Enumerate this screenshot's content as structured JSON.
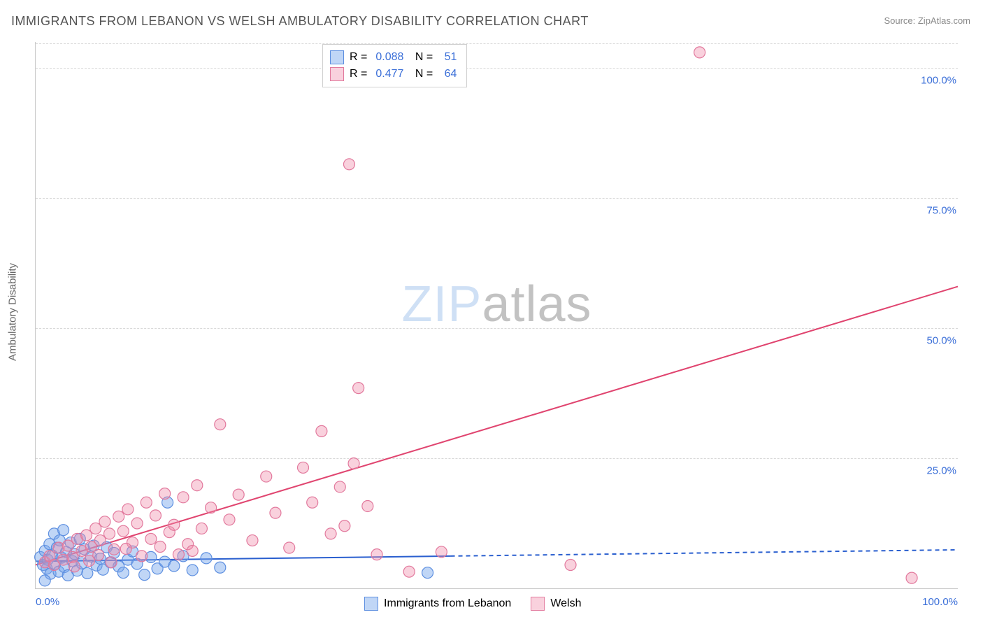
{
  "title": "IMMIGRANTS FROM LEBANON VS WELSH AMBULATORY DISABILITY CORRELATION CHART",
  "source": "Source: ZipAtlas.com",
  "watermark_a": "ZIP",
  "watermark_b": "atlas",
  "y_axis_title": "Ambulatory Disability",
  "chart": {
    "type": "scatter",
    "xlim": [
      0,
      100
    ],
    "ylim": [
      0,
      105
    ],
    "x_ticks": [
      {
        "v": 0,
        "label": "0.0%"
      },
      {
        "v": 100,
        "label": "100.0%"
      }
    ],
    "y_ticks": [
      {
        "v": 25,
        "label": "25.0%"
      },
      {
        "v": 50,
        "label": "50.0%"
      },
      {
        "v": 75,
        "label": "75.0%"
      },
      {
        "v": 100,
        "label": "100.0%"
      }
    ],
    "background_color": "#ffffff",
    "grid_color": "#d8d8d8",
    "axis_color": "#c9c9c9",
    "tick_label_color": "#3b6fd8",
    "text_color": "#666666",
    "marker_radius": 8,
    "marker_stroke_width": 1.2,
    "line_width": 2,
    "font_family": "Arial",
    "title_fontsize": 18,
    "label_fontsize": 15
  },
  "series": [
    {
      "name": "Immigrants from Lebanon",
      "short": "lebanon",
      "fill": "rgba(115,164,234,0.45)",
      "stroke": "#5d8fe0",
      "line_color": "#2a5fcf",
      "R": "0.088",
      "N": "51",
      "reg_line": {
        "x1": 0,
        "y1": 5.2,
        "x2": 45,
        "y2": 6.2,
        "dash_from_x": 45,
        "x3": 100,
        "y3": 7.4
      },
      "points": [
        [
          0.5,
          6
        ],
        [
          0.8,
          4.5
        ],
        [
          1.0,
          7.2
        ],
        [
          1.2,
          3.8
        ],
        [
          1.3,
          5.5
        ],
        [
          1.5,
          8.5
        ],
        [
          1.6,
          2.8
        ],
        [
          1.8,
          6.3
        ],
        [
          2.0,
          10.5
        ],
        [
          2.1,
          4.6
        ],
        [
          2.3,
          7.8
        ],
        [
          2.5,
          3.2
        ],
        [
          2.6,
          9.2
        ],
        [
          2.8,
          5.9
        ],
        [
          3.0,
          11.2
        ],
        [
          3.1,
          4.1
        ],
        [
          3.3,
          7.0
        ],
        [
          3.5,
          2.5
        ],
        [
          3.8,
          8.8
        ],
        [
          4.0,
          5.2
        ],
        [
          4.2,
          6.6
        ],
        [
          4.5,
          3.4
        ],
        [
          4.8,
          9.5
        ],
        [
          5.0,
          4.8
        ],
        [
          5.3,
          7.5
        ],
        [
          5.6,
          2.9
        ],
        [
          6.0,
          6.1
        ],
        [
          6.3,
          8.2
        ],
        [
          6.6,
          4.4
        ],
        [
          7.0,
          5.7
        ],
        [
          7.3,
          3.6
        ],
        [
          7.7,
          7.9
        ],
        [
          8.1,
          5.0
        ],
        [
          8.5,
          6.8
        ],
        [
          9.0,
          4.2
        ],
        [
          9.5,
          3.0
        ],
        [
          10.0,
          5.5
        ],
        [
          10.5,
          7.1
        ],
        [
          11.0,
          4.7
        ],
        [
          11.8,
          2.6
        ],
        [
          12.5,
          6.0
        ],
        [
          13.2,
          3.8
        ],
        [
          14.0,
          5.1
        ],
        [
          14.3,
          16.5
        ],
        [
          15.0,
          4.3
        ],
        [
          16.0,
          6.2
        ],
        [
          17.0,
          3.5
        ],
        [
          18.5,
          5.8
        ],
        [
          20.0,
          4.0
        ],
        [
          42.5,
          3.0
        ],
        [
          1.0,
          1.5
        ]
      ]
    },
    {
      "name": "Welsh",
      "short": "welsh",
      "fill": "rgba(239,140,170,0.40)",
      "stroke": "#e2799d",
      "line_color": "#e0446f",
      "R": "0.477",
      "N": "64",
      "reg_line": {
        "x1": 0,
        "y1": 4.5,
        "x2": 100,
        "y2": 58
      },
      "points": [
        [
          1.0,
          5.0
        ],
        [
          1.5,
          6.2
        ],
        [
          2.0,
          4.5
        ],
        [
          2.5,
          7.8
        ],
        [
          3.0,
          5.5
        ],
        [
          3.5,
          8.2
        ],
        [
          4.0,
          6.0
        ],
        [
          4.5,
          9.5
        ],
        [
          5.0,
          7.2
        ],
        [
          5.5,
          10.2
        ],
        [
          6.0,
          8.0
        ],
        [
          6.5,
          11.5
        ],
        [
          7.0,
          9.2
        ],
        [
          7.5,
          12.8
        ],
        [
          8.0,
          10.5
        ],
        [
          8.5,
          7.5
        ],
        [
          9.0,
          13.8
        ],
        [
          9.5,
          11.0
        ],
        [
          10.0,
          15.2
        ],
        [
          10.5,
          8.8
        ],
        [
          11.0,
          12.5
        ],
        [
          12.0,
          16.5
        ],
        [
          12.5,
          9.5
        ],
        [
          13.0,
          14.0
        ],
        [
          14.0,
          18.2
        ],
        [
          14.5,
          10.8
        ],
        [
          15.0,
          12.2
        ],
        [
          16.0,
          17.5
        ],
        [
          16.5,
          8.5
        ],
        [
          17.5,
          19.8
        ],
        [
          18.0,
          11.5
        ],
        [
          19.0,
          15.5
        ],
        [
          20.0,
          31.5
        ],
        [
          21.0,
          13.2
        ],
        [
          22.0,
          18.0
        ],
        [
          23.5,
          9.2
        ],
        [
          25.0,
          21.5
        ],
        [
          26.0,
          14.5
        ],
        [
          27.5,
          7.8
        ],
        [
          29.0,
          23.2
        ],
        [
          30.0,
          16.5
        ],
        [
          31.0,
          30.2
        ],
        [
          32.0,
          10.5
        ],
        [
          33.0,
          19.5
        ],
        [
          33.5,
          12.0
        ],
        [
          34.0,
          81.5
        ],
        [
          34.5,
          24.0
        ],
        [
          35.0,
          38.5
        ],
        [
          36.0,
          15.8
        ],
        [
          37.0,
          6.5
        ],
        [
          40.5,
          3.2
        ],
        [
          44.0,
          7.0
        ],
        [
          58.0,
          4.5
        ],
        [
          72.0,
          103.0
        ],
        [
          95.0,
          2.0
        ],
        [
          4.2,
          4.2
        ],
        [
          5.8,
          5.3
        ],
        [
          6.8,
          6.4
        ],
        [
          8.2,
          5.0
        ],
        [
          9.8,
          7.6
        ],
        [
          11.5,
          6.2
        ],
        [
          13.5,
          8.0
        ],
        [
          15.5,
          6.5
        ],
        [
          17.0,
          7.2
        ]
      ]
    }
  ],
  "legend_bottom": [
    {
      "series": "lebanon",
      "label": "Immigrants from Lebanon"
    },
    {
      "series": "welsh",
      "label": "Welsh"
    }
  ]
}
